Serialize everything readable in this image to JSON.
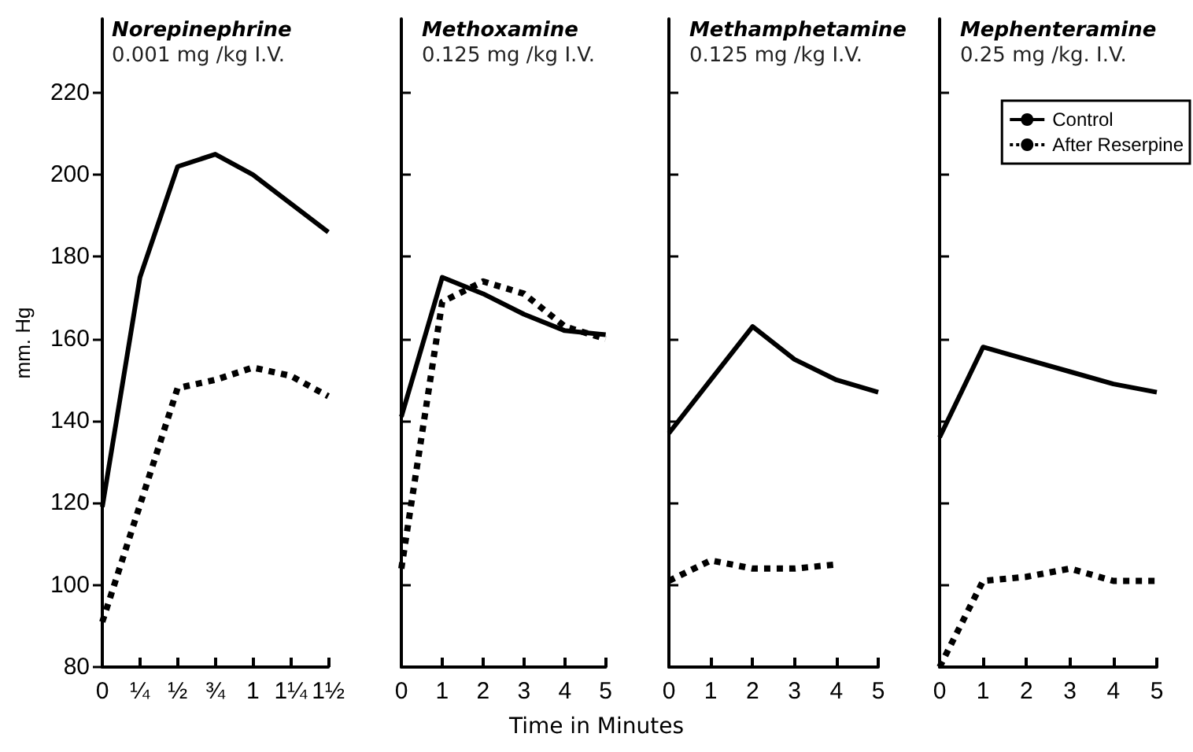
{
  "chart_data": [
    {
      "type": "line",
      "title": "Norepinephrine",
      "subtitle": "0.001 mg /kg I.V.",
      "ylabel": "mm. Hg",
      "xlim": [
        0,
        1.5
      ],
      "xticks": [
        0,
        {
          "value": 0.25,
          "label": "¼"
        },
        {
          "value": 0.5,
          "label": "½"
        },
        {
          "value": 0.75,
          "label": "¾"
        },
        1,
        {
          "value": 1.25,
          "label": "1¼"
        },
        {
          "value": 1.5,
          "label": "1½"
        }
      ],
      "ylim": [
        80,
        238
      ],
      "yticks": [
        80,
        100,
        120,
        140,
        160,
        180,
        200,
        220
      ],
      "grid": false,
      "marker": "none",
      "legend": false,
      "series": [
        {
          "color": "#000000",
          "line_style": "solid",
          "x": [
            0,
            0.25,
            0.5,
            0.75,
            1,
            1.25,
            1.5
          ],
          "values": [
            119,
            175,
            202,
            205,
            200,
            193,
            186
          ]
        },
        {
          "color": "#000000",
          "line_style": "dotted",
          "x": [
            0,
            0.5,
            0.75,
            1,
            1.25,
            1.5
          ],
          "values": [
            91,
            148,
            150,
            153,
            151,
            146
          ]
        }
      ]
    },
    {
      "type": "line",
      "title": "Methoxamine",
      "subtitle": "0.125 mg /kg I.V.",
      "xlabel": "Time in Minutes",
      "xlim": [
        0,
        5
      ],
      "xticks": [
        0,
        1,
        2,
        3,
        4,
        5
      ],
      "ylim": [
        80,
        238
      ],
      "yticks": [
        80,
        100,
        120,
        140,
        160,
        180,
        200,
        220
      ],
      "tick_labels": "x",
      "grid": false,
      "marker": "none",
      "legend": false,
      "series": [
        {
          "color": "#000000",
          "line_style": "solid",
          "x": [
            0,
            1,
            2,
            3,
            4,
            5
          ],
          "values": [
            141,
            175,
            171,
            166,
            162,
            161
          ]
        },
        {
          "color": "#000000",
          "line_style": "dotted",
          "x": [
            0,
            1,
            2,
            3,
            4,
            5
          ],
          "values": [
            104,
            169,
            174,
            171,
            163,
            160
          ]
        }
      ]
    },
    {
      "type": "line",
      "title": "Methamphetamine",
      "subtitle": "0.125 mg /kg I.V.",
      "xlim": [
        0,
        5
      ],
      "xticks": [
        0,
        1,
        2,
        3,
        4,
        5
      ],
      "ylim": [
        80,
        238
      ],
      "yticks": [
        80,
        100,
        120,
        140,
        160,
        180,
        200,
        220
      ],
      "tick_labels": "x",
      "grid": false,
      "marker": "none",
      "legend": false,
      "series": [
        {
          "color": "#000000",
          "line_style": "solid",
          "x": [
            0,
            1,
            2,
            3,
            4,
            5
          ],
          "values": [
            137,
            150,
            163,
            155,
            150,
            147
          ]
        },
        {
          "color": "#000000",
          "line_style": "dotted",
          "x": [
            0,
            1,
            2,
            3,
            4
          ],
          "values": [
            101,
            106,
            104,
            104,
            105
          ]
        }
      ]
    },
    {
      "type": "line",
      "title": "Mephenteramine",
      "subtitle": "0.25 mg /kg. I.V.",
      "xlim": [
        0,
        5
      ],
      "xticks": [
        0,
        1,
        2,
        3,
        4,
        5
      ],
      "ylim": [
        80,
        238
      ],
      "yticks": [
        80,
        100,
        120,
        140,
        160,
        180,
        200,
        220
      ],
      "tick_labels": "x",
      "grid": false,
      "marker": "none",
      "legend": "top right",
      "series": [
        {
          "name": "Control",
          "color": "#000000",
          "line_style": "solid",
          "x": [
            0,
            1,
            2,
            3,
            4,
            5
          ],
          "values": [
            136,
            158,
            155,
            152,
            149,
            147
          ]
        },
        {
          "name": "After Reserpine",
          "color": "#000000",
          "line_style": "dotted",
          "x": [
            0,
            1,
            2,
            3,
            4,
            5
          ],
          "values": [
            80,
            101,
            102,
            104,
            101,
            101
          ]
        }
      ]
    }
  ]
}
